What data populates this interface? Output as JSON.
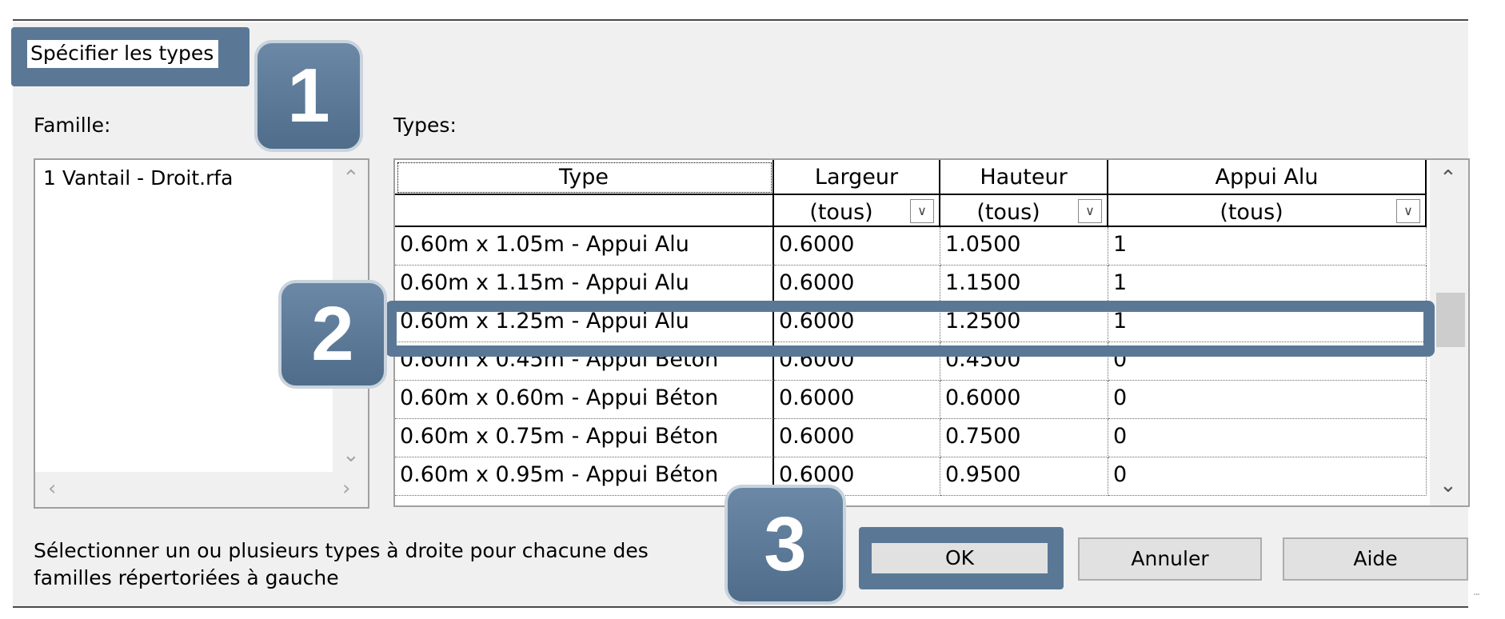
{
  "dialog": {
    "title": "Spécifier les types"
  },
  "family": {
    "label": "Famille:",
    "items": [
      "1 Vantail - Droit.rfa"
    ]
  },
  "types": {
    "label": "Types:",
    "columns": [
      "Type",
      "Largeur",
      "Hauteur",
      "Appui Alu"
    ],
    "filters": [
      "",
      "(tous)",
      "(tous)",
      "(tous)"
    ],
    "rows": [
      [
        "0.60m x 1.05m - Appui Alu",
        "0.6000",
        "1.0500",
        "1"
      ],
      [
        "0.60m x 1.15m - Appui Alu",
        "0.6000",
        "1.1500",
        "1"
      ],
      [
        "0.60m x 1.25m - Appui Alu",
        "0.6000",
        "1.2500",
        "1"
      ],
      [
        "0.60m x 0.45m - Appui Béton",
        "0.6000",
        "0.4500",
        "0"
      ],
      [
        "0.60m x 0.60m - Appui Béton",
        "0.6000",
        "0.6000",
        "0"
      ],
      [
        "0.60m x 0.75m - Appui Béton",
        "0.6000",
        "0.7500",
        "0"
      ],
      [
        "0.60m x 0.95m - Appui Béton",
        "0.6000",
        "0.9500",
        "0"
      ]
    ],
    "selected_row": 2
  },
  "instructions": {
    "line1": "Sélectionner un ou plusieurs types à droite pour chacune des",
    "line2": "familles répertoriées à gauche"
  },
  "buttons": {
    "ok": "OK",
    "cancel": "Annuler",
    "help": "Aide"
  },
  "callouts": {
    "c1": "1",
    "c2": "2",
    "c3": "3"
  },
  "colors": {
    "callout": "#5a7896",
    "dialog_bg": "#f0f0f0",
    "button_bg": "#e1e1e1"
  }
}
